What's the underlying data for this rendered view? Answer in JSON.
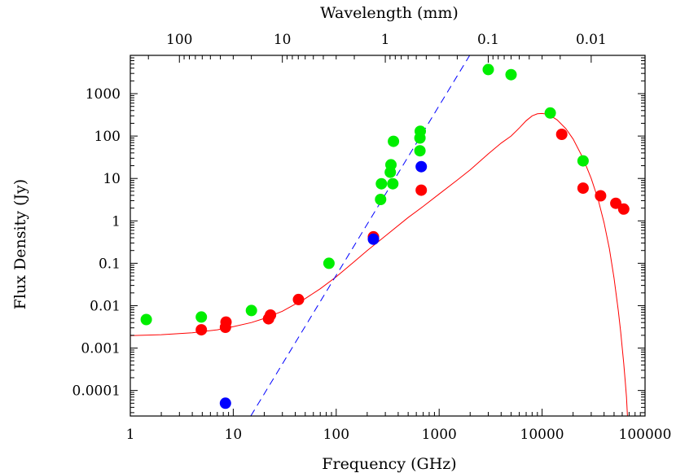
{
  "chart_data": {
    "type": "scatter",
    "title": "",
    "xlabel": "Frequency (GHz)",
    "x2label": "Wavelength (mm)",
    "ylabel": "Flux Density (Jy)",
    "xscale": "log",
    "yscale": "log",
    "xlim": [
      1,
      100000
    ],
    "ylim": [
      2.5e-05,
      8000
    ],
    "grid": false,
    "legend": "none",
    "x_tick_labels": [
      "1",
      "10",
      "100",
      "1000",
      "10000",
      "100000"
    ],
    "x_tick_values": [
      1,
      10,
      100,
      1000,
      10000,
      100000
    ],
    "x2_tick_labels": [
      "100",
      "10",
      "1",
      "0.1",
      "0.01"
    ],
    "x2_tick_values_mm": [
      100,
      10,
      1,
      0.1,
      0.01
    ],
    "y_tick_labels": [
      "0.0001",
      "0.001",
      "0.01",
      "0.1",
      "1",
      "10",
      "100",
      "1000"
    ],
    "y_tick_values": [
      0.0001,
      0.001,
      0.01,
      0.1,
      1,
      10,
      100,
      1000
    ],
    "series": [
      {
        "color": "#00ee00",
        "marker": "circle",
        "points": [
          [
            1.43,
            0.0047
          ],
          [
            4.9,
            0.0054
          ],
          [
            15,
            0.0077
          ],
          [
            85,
            0.1
          ],
          [
            270,
            3.2
          ],
          [
            275,
            7.5
          ],
          [
            335,
            14
          ],
          [
            340,
            21
          ],
          [
            355,
            7.5
          ],
          [
            360,
            75
          ],
          [
            650,
            45
          ],
          [
            650,
            90
          ],
          [
            655,
            130
          ],
          [
            3000,
            3700
          ],
          [
            5000,
            2800
          ],
          [
            12000,
            350
          ],
          [
            25000,
            26
          ]
        ]
      },
      {
        "color": "#ff0000",
        "marker": "circle",
        "points": [
          [
            4.9,
            0.0027
          ],
          [
            8.4,
            0.0031
          ],
          [
            8.5,
            0.0041
          ],
          [
            22,
            0.0049
          ],
          [
            23,
            0.006
          ],
          [
            43,
            0.014
          ],
          [
            230,
            0.42
          ],
          [
            670,
            5.3
          ],
          [
            15500,
            110
          ],
          [
            25000,
            5.9
          ],
          [
            37000,
            3.9
          ],
          [
            52000,
            2.6
          ],
          [
            62000,
            1.9
          ]
        ]
      },
      {
        "color": "#0000ff",
        "marker": "circle",
        "points": [
          [
            8.4,
            5e-05
          ],
          [
            230,
            0.37
          ],
          [
            670,
            19
          ]
        ]
      }
    ],
    "fit_curves": [
      {
        "style": "solid",
        "color": "#ff0000",
        "points": [
          [
            1,
            0.00197
          ],
          [
            2,
            0.00207
          ],
          [
            4,
            0.0023
          ],
          [
            7,
            0.0027
          ],
          [
            10,
            0.0032
          ],
          [
            15,
            0.004
          ],
          [
            20,
            0.005
          ],
          [
            30,
            0.0074
          ],
          [
            50,
            0.0147
          ],
          [
            70,
            0.025
          ],
          [
            100,
            0.048
          ],
          [
            150,
            0.11
          ],
          [
            200,
            0.2
          ],
          [
            300,
            0.44
          ],
          [
            500,
            1.2
          ],
          [
            700,
            2.2
          ],
          [
            1000,
            4.3
          ],
          [
            1500,
            9.2
          ],
          [
            2000,
            16
          ],
          [
            3000,
            38
          ],
          [
            4000,
            68
          ],
          [
            5000,
            100
          ],
          [
            6000,
            155
          ],
          [
            7000,
            230
          ],
          [
            8000,
            300
          ],
          [
            9000,
            335
          ],
          [
            10000,
            340
          ],
          [
            11000,
            330
          ],
          [
            12000,
            305
          ],
          [
            14000,
            240
          ],
          [
            17000,
            150
          ],
          [
            20000,
            85
          ],
          [
            25000,
            30
          ],
          [
            30000,
            10
          ],
          [
            35000,
            3.2
          ],
          [
            40000,
            0.9
          ],
          [
            45000,
            0.22
          ],
          [
            50000,
            0.045
          ],
          [
            55000,
            0.0075
          ],
          [
            58000,
            0.0024
          ],
          [
            60000,
            0.001
          ],
          [
            62000,
            0.00044
          ],
          [
            64000,
            0.00018
          ],
          [
            66000,
            7e-05
          ],
          [
            67500,
            2.5e-05
          ]
        ]
      },
      {
        "style": "dashed",
        "color": "#0000ff",
        "points": [
          [
            14.8,
            2.5e-05
          ],
          [
            1980,
            8000
          ]
        ]
      }
    ]
  }
}
